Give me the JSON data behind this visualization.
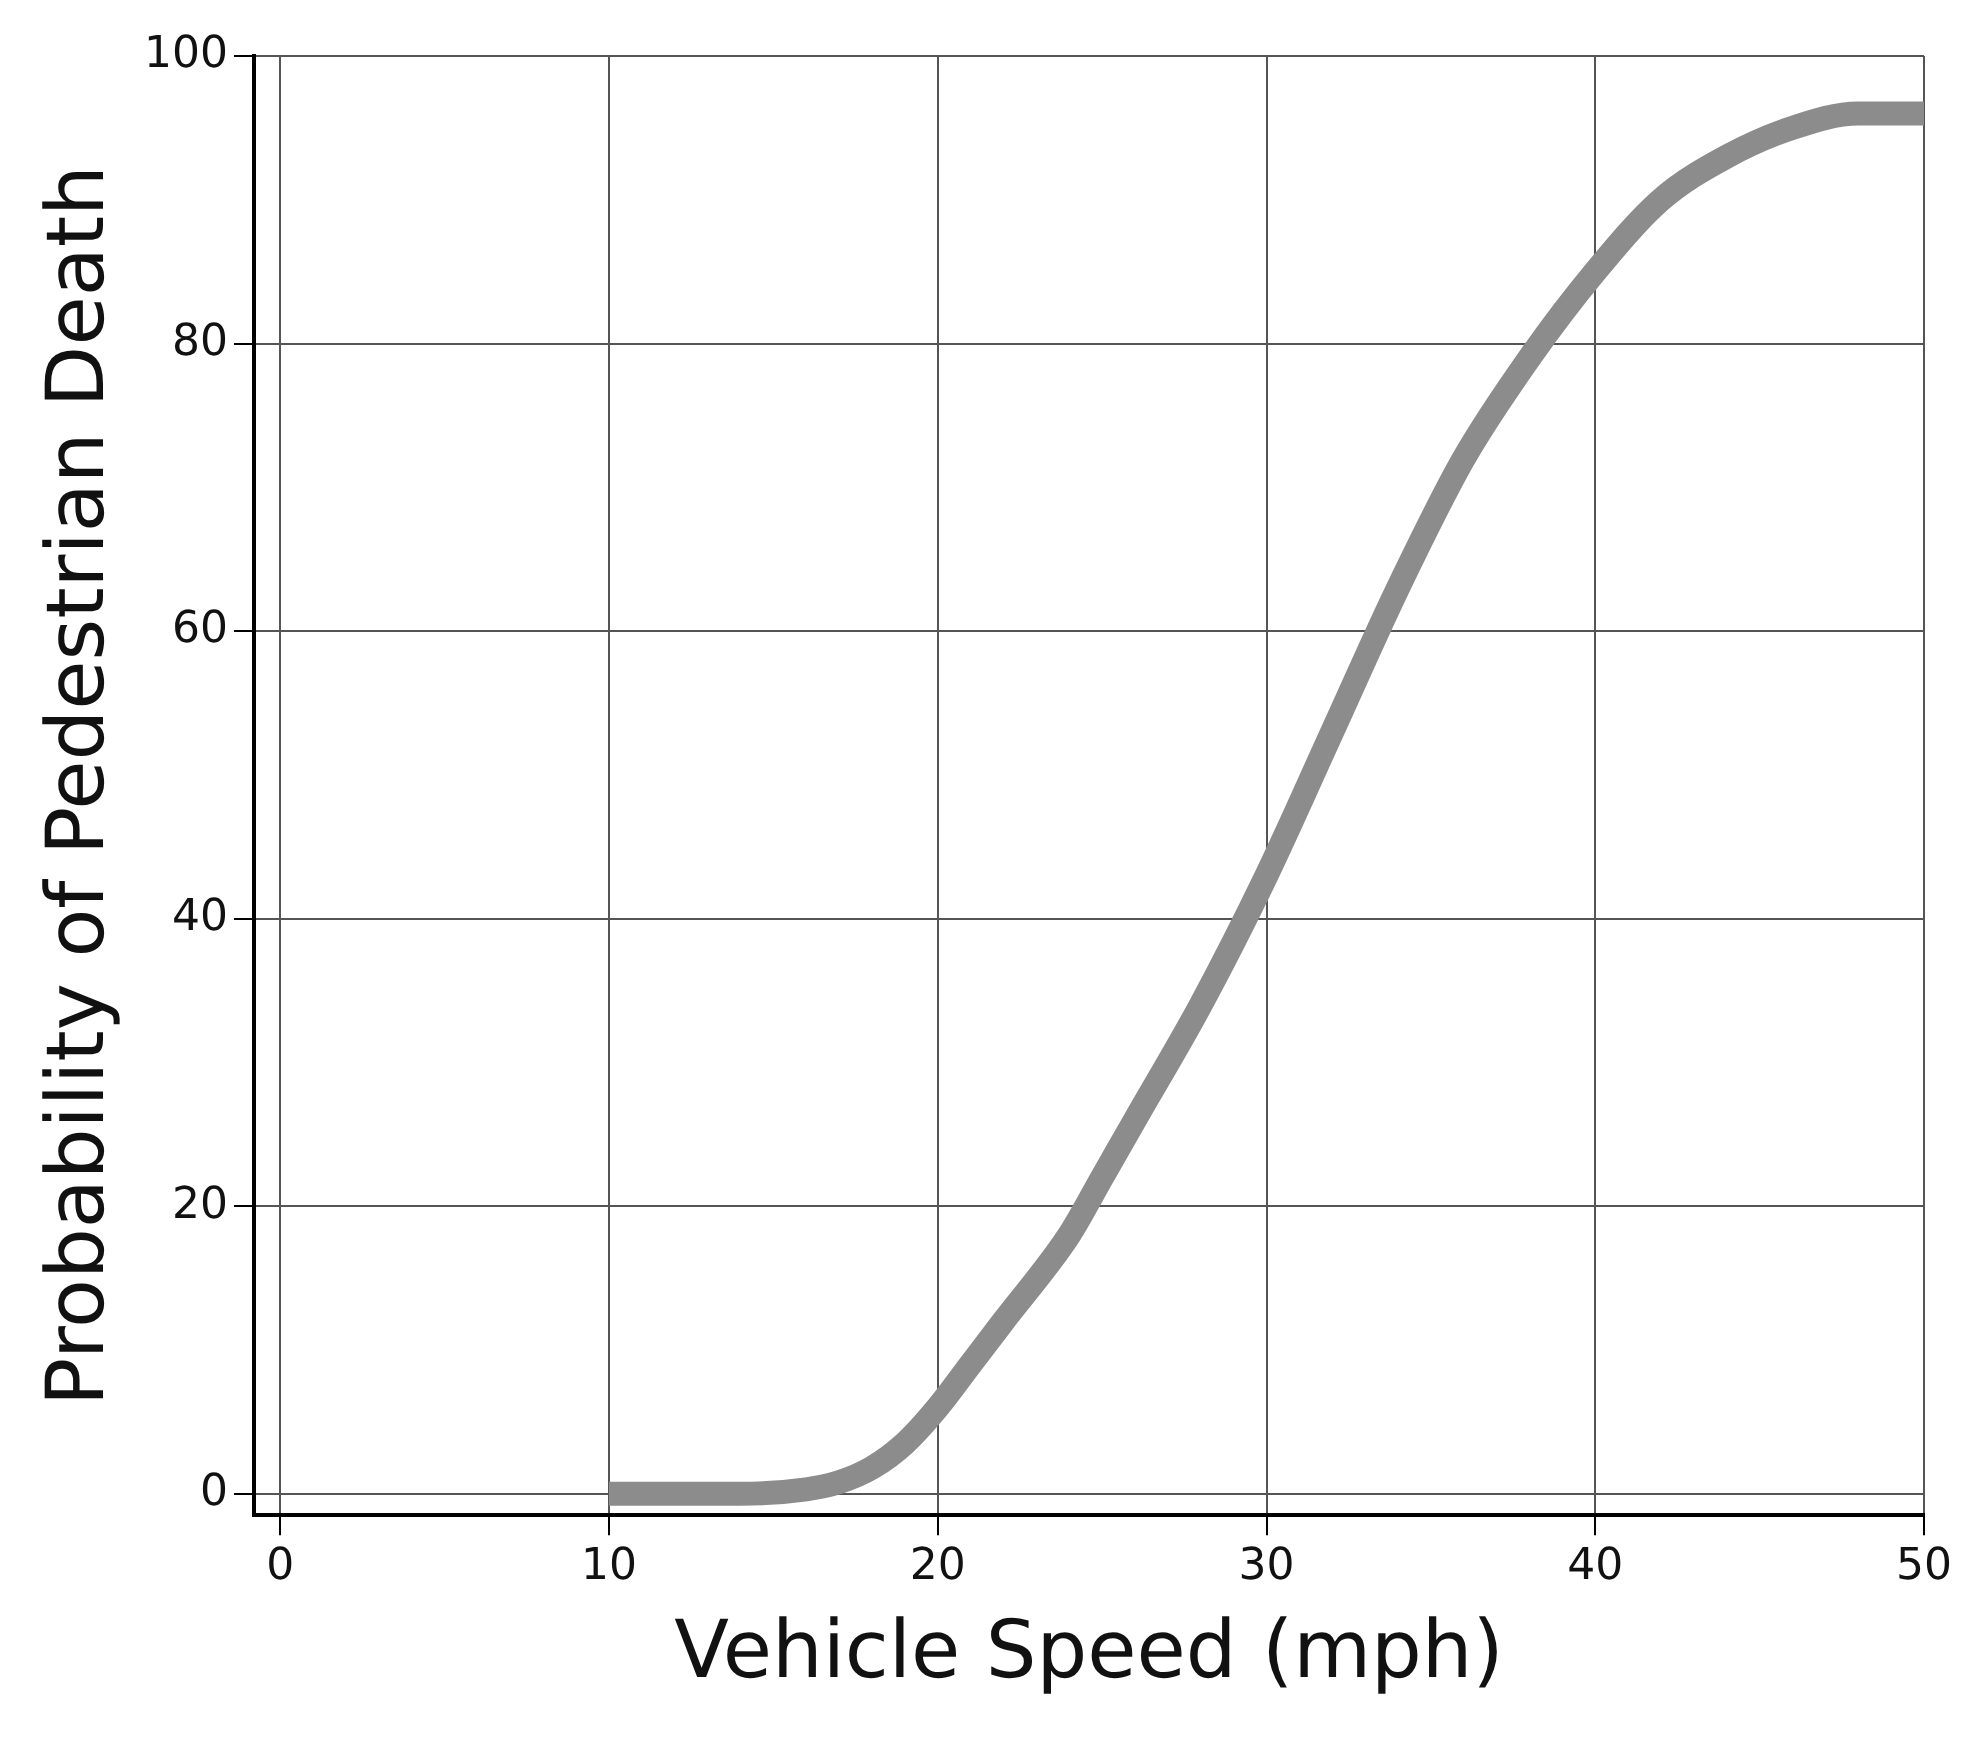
{
  "chart_data": {
    "type": "line",
    "xlabel": "Vehicle Speed (mph)",
    "ylabel": "Probability of Pedestrian Death",
    "series": [
      {
        "color": "#8c8c8c",
        "x": [
          10,
          12,
          14,
          16,
          17,
          18,
          19,
          20,
          21,
          22,
          24,
          25,
          26,
          28,
          30,
          32,
          34,
          36,
          38,
          40,
          42,
          44,
          46,
          48,
          50
        ],
        "values": [
          0,
          0,
          0,
          0.3,
          0.8,
          1.8,
          3.5,
          6,
          9,
          12,
          18,
          22,
          26,
          34,
          43,
          53,
          63,
          72,
          79,
          85,
          90,
          93,
          95,
          96,
          96
        ]
      }
    ],
    "xlim": [
      -0.8,
      50
    ],
    "xticks": [
      0,
      10,
      20,
      30,
      40,
      50
    ],
    "ylim": [
      -1.5,
      100
    ],
    "yticks": [
      0,
      20,
      40,
      60,
      80,
      100
    ],
    "grid": true,
    "legend": false,
    "marker": "none",
    "line_style": "solid"
  }
}
